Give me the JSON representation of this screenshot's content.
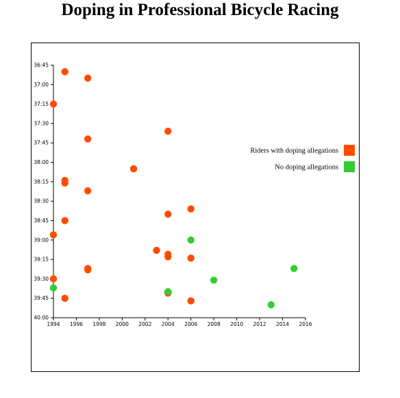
{
  "title": "Doping in Professional Bicycle Racing",
  "chart_data": {
    "type": "scatter",
    "title": "Doping in Professional Bicycle Racing",
    "xlabel": "",
    "ylabel": "",
    "xlim": [
      1994,
      2016
    ],
    "ylim": [
      "36:45",
      "40:00"
    ],
    "x_ticks": [
      "1994",
      "1996",
      "1998",
      "2000",
      "2002",
      "2004",
      "2006",
      "2008",
      "2010",
      "2012",
      "2014",
      "2016"
    ],
    "y_ticks": [
      "36:45",
      "37:00",
      "37:15",
      "37:30",
      "37:45",
      "38:00",
      "38:15",
      "38:30",
      "38:45",
      "39:00",
      "39:15",
      "39:30",
      "39:45",
      "40:00"
    ],
    "grid": false,
    "legend_position": "right",
    "series": [
      {
        "name": "Riders with doping allegations",
        "color": "#ff4c00",
        "points": [
          {
            "x": 1995,
            "y": "36:50"
          },
          {
            "x": 1997,
            "y": "36:55"
          },
          {
            "x": 1994,
            "y": "37:15"
          },
          {
            "x": 2004,
            "y": "37:36"
          },
          {
            "x": 1997,
            "y": "37:42"
          },
          {
            "x": 2001,
            "y": "38:05"
          },
          {
            "x": 1995,
            "y": "38:14"
          },
          {
            "x": 1995,
            "y": "38:16"
          },
          {
            "x": 1997,
            "y": "38:22"
          },
          {
            "x": 2006,
            "y": "38:36"
          },
          {
            "x": 2004,
            "y": "38:40"
          },
          {
            "x": 1995,
            "y": "38:45"
          },
          {
            "x": 1994,
            "y": "38:56"
          },
          {
            "x": 2003,
            "y": "39:08"
          },
          {
            "x": 2004,
            "y": "39:11"
          },
          {
            "x": 2004,
            "y": "39:13"
          },
          {
            "x": 2006,
            "y": "39:14"
          },
          {
            "x": 1997,
            "y": "39:22"
          },
          {
            "x": 1997,
            "y": "39:23"
          },
          {
            "x": 1994,
            "y": "39:30"
          },
          {
            "x": 2004,
            "y": "39:40"
          },
          {
            "x": 2004,
            "y": "39:41"
          },
          {
            "x": 1995,
            "y": "39:45"
          },
          {
            "x": 2006,
            "y": "39:47"
          }
        ]
      },
      {
        "name": "No doping allegations",
        "color": "#33cc33",
        "points": [
          {
            "x": 2006,
            "y": "39:00"
          },
          {
            "x": 2015,
            "y": "39:22"
          },
          {
            "x": 2008,
            "y": "39:31"
          },
          {
            "x": 1994,
            "y": "39:37"
          },
          {
            "x": 2004,
            "y": "39:40"
          },
          {
            "x": 2013,
            "y": "39:50"
          }
        ]
      }
    ]
  }
}
